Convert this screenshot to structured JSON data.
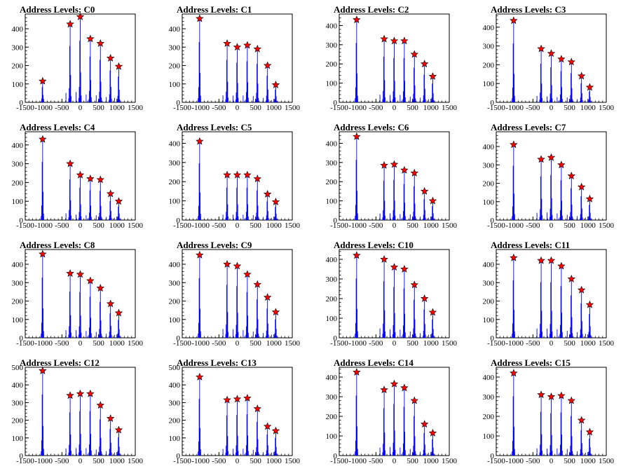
{
  "page": {
    "title_prefix": "Address Levels: "
  },
  "colors": {
    "histogram": "#0000ff",
    "marker_fill": "#ff0000",
    "marker_edge": "#000000",
    "axis": "#000000",
    "background": "#ffffff"
  },
  "axes": {
    "xlim": [
      -1500,
      1500
    ],
    "x_ticks": [
      -1500,
      -1000,
      -500,
      0,
      500,
      1000,
      1500
    ],
    "x_tick_labels": [
      "-1500",
      "-1000",
      "-500",
      "0",
      "500",
      "1000",
      "1500"
    ],
    "tick_label_render": "-1500-1000 -500  0  500 1000 1500",
    "grid": false
  },
  "chart_data": [
    {
      "type": "histogram",
      "title": "Address Levels: C0",
      "ylim": [
        0,
        480
      ],
      "y_ticks": [
        0,
        100,
        200,
        300,
        400
      ],
      "peaks": [
        {
          "x": -1025,
          "y": 115
        },
        {
          "x": -275,
          "y": 425
        },
        {
          "x": 0,
          "y": 465
        },
        {
          "x": 275,
          "y": 345
        },
        {
          "x": 550,
          "y": 320
        },
        {
          "x": 825,
          "y": 240
        },
        {
          "x": 1050,
          "y": 195
        }
      ]
    },
    {
      "type": "histogram",
      "title": "Address Levels: C1",
      "ylim": [
        0,
        480
      ],
      "y_ticks": [
        0,
        100,
        200,
        300,
        400
      ],
      "peaks": [
        {
          "x": -1025,
          "y": 455
        },
        {
          "x": -275,
          "y": 320
        },
        {
          "x": 0,
          "y": 300
        },
        {
          "x": 275,
          "y": 310
        },
        {
          "x": 550,
          "y": 290
        },
        {
          "x": 825,
          "y": 200
        },
        {
          "x": 1050,
          "y": 95
        }
      ]
    },
    {
      "type": "histogram",
      "title": "Address Levels: C2",
      "ylim": [
        0,
        460
      ],
      "y_ticks": [
        0,
        100,
        200,
        300,
        400
      ],
      "peaks": [
        {
          "x": -1025,
          "y": 430
        },
        {
          "x": -275,
          "y": 330
        },
        {
          "x": 0,
          "y": 320
        },
        {
          "x": 275,
          "y": 320
        },
        {
          "x": 550,
          "y": 250
        },
        {
          "x": 825,
          "y": 200
        },
        {
          "x": 1050,
          "y": 135
        }
      ]
    },
    {
      "type": "histogram",
      "title": "Address Levels: C3",
      "ylim": [
        0,
        470
      ],
      "y_ticks": [
        0,
        100,
        200,
        300,
        400
      ],
      "peaks": [
        {
          "x": -1025,
          "y": 435
        },
        {
          "x": -275,
          "y": 285
        },
        {
          "x": 0,
          "y": 260
        },
        {
          "x": 275,
          "y": 230
        },
        {
          "x": 550,
          "y": 215
        },
        {
          "x": 825,
          "y": 140
        },
        {
          "x": 1050,
          "y": 80
        }
      ]
    },
    {
      "type": "histogram",
      "title": "Address Levels: C4",
      "ylim": [
        0,
        470
      ],
      "y_ticks": [
        0,
        100,
        200,
        300,
        400
      ],
      "peaks": [
        {
          "x": -1025,
          "y": 430
        },
        {
          "x": -275,
          "y": 300
        },
        {
          "x": 0,
          "y": 240
        },
        {
          "x": 275,
          "y": 220
        },
        {
          "x": 550,
          "y": 215
        },
        {
          "x": 825,
          "y": 140
        },
        {
          "x": 1050,
          "y": 100
        }
      ]
    },
    {
      "type": "histogram",
      "title": "Address Levels: C5",
      "ylim": [
        0,
        460
      ],
      "y_ticks": [
        0,
        100,
        200,
        300,
        400
      ],
      "peaks": [
        {
          "x": -1025,
          "y": 410
        },
        {
          "x": -275,
          "y": 235
        },
        {
          "x": 0,
          "y": 235
        },
        {
          "x": 275,
          "y": 235
        },
        {
          "x": 550,
          "y": 215
        },
        {
          "x": 825,
          "y": 135
        },
        {
          "x": 1050,
          "y": 95
        }
      ]
    },
    {
      "type": "histogram",
      "title": "Address Levels: C6",
      "ylim": [
        0,
        460
      ],
      "y_ticks": [
        0,
        100,
        200,
        300,
        400
      ],
      "peaks": [
        {
          "x": -1025,
          "y": 435
        },
        {
          "x": -275,
          "y": 285
        },
        {
          "x": 0,
          "y": 290
        },
        {
          "x": 275,
          "y": 260
        },
        {
          "x": 550,
          "y": 245
        },
        {
          "x": 825,
          "y": 150
        },
        {
          "x": 1050,
          "y": 100
        }
      ]
    },
    {
      "type": "histogram",
      "title": "Address Levels: C7",
      "ylim": [
        0,
        480
      ],
      "y_ticks": [
        0,
        100,
        200,
        300,
        400
      ],
      "peaks": [
        {
          "x": -1025,
          "y": 410
        },
        {
          "x": -275,
          "y": 330
        },
        {
          "x": 0,
          "y": 340
        },
        {
          "x": 275,
          "y": 300
        },
        {
          "x": 550,
          "y": 240
        },
        {
          "x": 825,
          "y": 180
        },
        {
          "x": 1050,
          "y": 115
        }
      ]
    },
    {
      "type": "histogram",
      "title": "Address Levels: C8",
      "ylim": [
        0,
        480
      ],
      "y_ticks": [
        0,
        100,
        200,
        300,
        400
      ],
      "peaks": [
        {
          "x": -1025,
          "y": 455
        },
        {
          "x": -275,
          "y": 350
        },
        {
          "x": 0,
          "y": 345
        },
        {
          "x": 275,
          "y": 310
        },
        {
          "x": 550,
          "y": 270
        },
        {
          "x": 825,
          "y": 185
        },
        {
          "x": 1050,
          "y": 135
        }
      ]
    },
    {
      "type": "histogram",
      "title": "Address Levels: C9",
      "ylim": [
        0,
        480
      ],
      "y_ticks": [
        0,
        100,
        200,
        300,
        400
      ],
      "peaks": [
        {
          "x": -1025,
          "y": 450
        },
        {
          "x": -275,
          "y": 400
        },
        {
          "x": 0,
          "y": 390
        },
        {
          "x": 275,
          "y": 345
        },
        {
          "x": 550,
          "y": 290
        },
        {
          "x": 825,
          "y": 220
        },
        {
          "x": 1050,
          "y": 140
        }
      ]
    },
    {
      "type": "histogram",
      "title": "Address Levels: C10",
      "ylim": [
        0,
        450
      ],
      "y_ticks": [
        0,
        100,
        200,
        300,
        400
      ],
      "peaks": [
        {
          "x": -1025,
          "y": 420
        },
        {
          "x": -275,
          "y": 400
        },
        {
          "x": 0,
          "y": 360
        },
        {
          "x": 275,
          "y": 350
        },
        {
          "x": 550,
          "y": 270
        },
        {
          "x": 825,
          "y": 200
        },
        {
          "x": 1050,
          "y": 130
        }
      ]
    },
    {
      "type": "histogram",
      "title": "Address Levels: C11",
      "ylim": [
        0,
        480
      ],
      "y_ticks": [
        0,
        100,
        200,
        300,
        400
      ],
      "peaks": [
        {
          "x": -1025,
          "y": 435
        },
        {
          "x": -275,
          "y": 420
        },
        {
          "x": 0,
          "y": 420
        },
        {
          "x": 275,
          "y": 390
        },
        {
          "x": 550,
          "y": 320
        },
        {
          "x": 825,
          "y": 260
        },
        {
          "x": 1050,
          "y": 180
        }
      ]
    },
    {
      "type": "histogram",
      "title": "Address Levels: C12",
      "ylim": [
        0,
        500
      ],
      "y_ticks": [
        0,
        100,
        200,
        300,
        400,
        500
      ],
      "peaks": [
        {
          "x": -1025,
          "y": 480
        },
        {
          "x": -275,
          "y": 340
        },
        {
          "x": 0,
          "y": 350
        },
        {
          "x": 275,
          "y": 350
        },
        {
          "x": 550,
          "y": 285
        },
        {
          "x": 825,
          "y": 210
        },
        {
          "x": 1050,
          "y": 145
        }
      ]
    },
    {
      "type": "histogram",
      "title": "Address Levels: C13",
      "ylim": [
        0,
        500
      ],
      "y_ticks": [
        0,
        100,
        200,
        300,
        400,
        500
      ],
      "peaks": [
        {
          "x": -1025,
          "y": 445
        },
        {
          "x": -275,
          "y": 315
        },
        {
          "x": 0,
          "y": 320
        },
        {
          "x": 275,
          "y": 325
        },
        {
          "x": 550,
          "y": 265
        },
        {
          "x": 825,
          "y": 165
        },
        {
          "x": 1050,
          "y": 140
        }
      ]
    },
    {
      "type": "histogram",
      "title": "Address Levels: C14",
      "ylim": [
        0,
        450
      ],
      "y_ticks": [
        0,
        100,
        200,
        300,
        400
      ],
      "peaks": [
        {
          "x": -1025,
          "y": 425
        },
        {
          "x": -275,
          "y": 335
        },
        {
          "x": 0,
          "y": 365
        },
        {
          "x": 275,
          "y": 345
        },
        {
          "x": 550,
          "y": 280
        },
        {
          "x": 825,
          "y": 160
        },
        {
          "x": 1050,
          "y": 115
        }
      ]
    },
    {
      "type": "histogram",
      "title": "Address Levels: C15",
      "ylim": [
        0,
        450
      ],
      "y_ticks": [
        0,
        100,
        200,
        300,
        400
      ],
      "peaks": [
        {
          "x": -1025,
          "y": 420
        },
        {
          "x": -275,
          "y": 310
        },
        {
          "x": 0,
          "y": 300
        },
        {
          "x": 275,
          "y": 305
        },
        {
          "x": 550,
          "y": 280
        },
        {
          "x": 825,
          "y": 180
        },
        {
          "x": 1050,
          "y": 120
        }
      ]
    }
  ]
}
